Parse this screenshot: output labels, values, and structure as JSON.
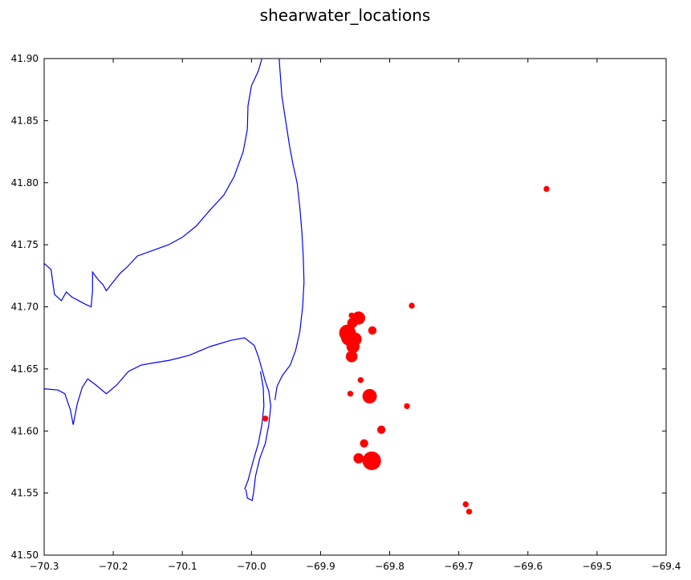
{
  "chart_data": {
    "type": "scatter",
    "title": "shearwater_locations",
    "xlabel": "",
    "ylabel": "",
    "xlim": [
      -70.3,
      -69.4
    ],
    "ylim": [
      41.5,
      41.9
    ],
    "x_ticks": [
      "−70.3",
      "−70.2",
      "−70.1",
      "−70.0",
      "−69.9",
      "−69.8",
      "−69.7",
      "−69.6",
      "−69.5",
      "−69.4"
    ],
    "x_tick_values": [
      -70.3,
      -70.2,
      -70.1,
      -70.0,
      -69.9,
      -69.8,
      -69.7,
      -69.6,
      -69.5,
      -69.4
    ],
    "y_ticks": [
      "41.50",
      "41.55",
      "41.60",
      "41.65",
      "41.70",
      "41.75",
      "41.80",
      "41.85",
      "41.90"
    ],
    "y_tick_values": [
      41.5,
      41.55,
      41.6,
      41.65,
      41.7,
      41.75,
      41.8,
      41.85,
      41.9
    ],
    "grid": false,
    "marker_color": "#ff0000",
    "coastline_color": "#0000ff",
    "points": [
      {
        "x": -69.573,
        "y": 41.795,
        "size": 1
      },
      {
        "x": -69.768,
        "y": 41.701,
        "size": 1
      },
      {
        "x": -69.845,
        "y": 41.691,
        "size": 5
      },
      {
        "x": -69.855,
        "y": 41.693,
        "size": 1
      },
      {
        "x": -69.854,
        "y": 41.687,
        "size": 3
      },
      {
        "x": -69.861,
        "y": 41.679,
        "size": 8
      },
      {
        "x": -69.859,
        "y": 41.675,
        "size": 7
      },
      {
        "x": -69.85,
        "y": 41.674,
        "size": 5
      },
      {
        "x": -69.853,
        "y": 41.668,
        "size": 5
      },
      {
        "x": -69.825,
        "y": 41.681,
        "size": 2
      },
      {
        "x": -69.855,
        "y": 41.66,
        "size": 4
      },
      {
        "x": -69.842,
        "y": 41.641,
        "size": 1
      },
      {
        "x": -69.857,
        "y": 41.63,
        "size": 1
      },
      {
        "x": -69.829,
        "y": 41.628,
        "size": 6
      },
      {
        "x": -69.775,
        "y": 41.62,
        "size": 1
      },
      {
        "x": -69.812,
        "y": 41.601,
        "size": 2
      },
      {
        "x": -69.837,
        "y": 41.59,
        "size": 2
      },
      {
        "x": -69.845,
        "y": 41.578,
        "size": 3
      },
      {
        "x": -69.826,
        "y": 41.576,
        "size": 10
      },
      {
        "x": -69.98,
        "y": 41.61,
        "size": 1
      },
      {
        "x": -69.69,
        "y": 41.541,
        "size": 1
      },
      {
        "x": -69.685,
        "y": 41.535,
        "size": 1
      }
    ],
    "coastline": [
      [
        [
          -70.3,
          41.735
        ],
        [
          -70.29,
          41.73
        ],
        [
          -70.285,
          41.71
        ],
        [
          -70.275,
          41.705
        ],
        [
          -70.268,
          41.712
        ],
        [
          -70.26,
          41.708
        ],
        [
          -70.25,
          41.705
        ],
        [
          -70.24,
          41.702
        ],
        [
          -70.232,
          41.7
        ],
        [
          -70.23,
          41.713
        ],
        [
          -70.23,
          41.728
        ],
        [
          -70.222,
          41.722
        ],
        [
          -70.215,
          41.718
        ],
        [
          -70.21,
          41.713
        ],
        [
          -70.203,
          41.718
        ],
        [
          -70.19,
          41.727
        ],
        [
          -70.18,
          41.732
        ],
        [
          -70.165,
          41.741
        ],
        [
          -70.14,
          41.746
        ],
        [
          -70.12,
          41.75
        ],
        [
          -70.1,
          41.756
        ],
        [
          -70.08,
          41.765
        ],
        [
          -70.06,
          41.778
        ],
        [
          -70.04,
          41.79
        ],
        [
          -70.025,
          41.805
        ],
        [
          -70.012,
          41.825
        ],
        [
          -70.006,
          41.843
        ],
        [
          -70.005,
          41.862
        ],
        [
          -70.0,
          41.878
        ],
        [
          -69.99,
          41.89
        ],
        [
          -69.985,
          41.9
        ]
      ],
      [
        [
          -69.96,
          41.9
        ],
        [
          -69.956,
          41.87
        ],
        [
          -69.95,
          41.848
        ],
        [
          -69.945,
          41.83
        ],
        [
          -69.94,
          41.815
        ],
        [
          -69.934,
          41.8
        ],
        [
          -69.93,
          41.78
        ],
        [
          -69.927,
          41.76
        ],
        [
          -69.925,
          41.74
        ],
        [
          -69.924,
          41.72
        ],
        [
          -69.926,
          41.7
        ],
        [
          -69.93,
          41.68
        ],
        [
          -69.936,
          41.665
        ],
        [
          -69.944,
          41.653
        ],
        [
          -69.955,
          41.645
        ],
        [
          -69.963,
          41.636
        ],
        [
          -69.966,
          41.625
        ]
      ],
      [
        [
          -70.3,
          41.634
        ],
        [
          -70.28,
          41.633
        ],
        [
          -70.27,
          41.63
        ],
        [
          -70.262,
          41.617
        ],
        [
          -70.258,
          41.605
        ],
        [
          -70.252,
          41.622
        ],
        [
          -70.245,
          41.635
        ],
        [
          -70.237,
          41.642
        ],
        [
          -70.225,
          41.637
        ],
        [
          -70.21,
          41.63
        ],
        [
          -70.195,
          41.637
        ],
        [
          -70.178,
          41.648
        ],
        [
          -70.16,
          41.653
        ],
        [
          -70.14,
          41.655
        ],
        [
          -70.118,
          41.657
        ],
        [
          -70.09,
          41.661
        ],
        [
          -70.06,
          41.668
        ],
        [
          -70.03,
          41.673
        ],
        [
          -70.01,
          41.675
        ],
        [
          -69.996,
          41.669
        ],
        [
          -69.99,
          41.66
        ],
        [
          -69.985,
          41.65
        ],
        [
          -69.98,
          41.64
        ],
        [
          -69.975,
          41.632
        ],
        [
          -69.972,
          41.62
        ],
        [
          -69.975,
          41.605
        ],
        [
          -69.98,
          41.59
        ],
        [
          -69.988,
          41.578
        ],
        [
          -69.994,
          41.564
        ],
        [
          -69.997,
          41.55
        ],
        [
          -69.999,
          41.544
        ],
        [
          -70.006,
          41.546
        ],
        [
          -70.008,
          41.553
        ]
      ],
      [
        [
          -70.01,
          41.553
        ],
        [
          -70.005,
          41.56
        ],
        [
          -69.998,
          41.575
        ],
        [
          -69.99,
          41.59
        ],
        [
          -69.985,
          41.605
        ],
        [
          -69.982,
          41.62
        ],
        [
          -69.983,
          41.635
        ],
        [
          -69.987,
          41.648
        ]
      ]
    ]
  }
}
